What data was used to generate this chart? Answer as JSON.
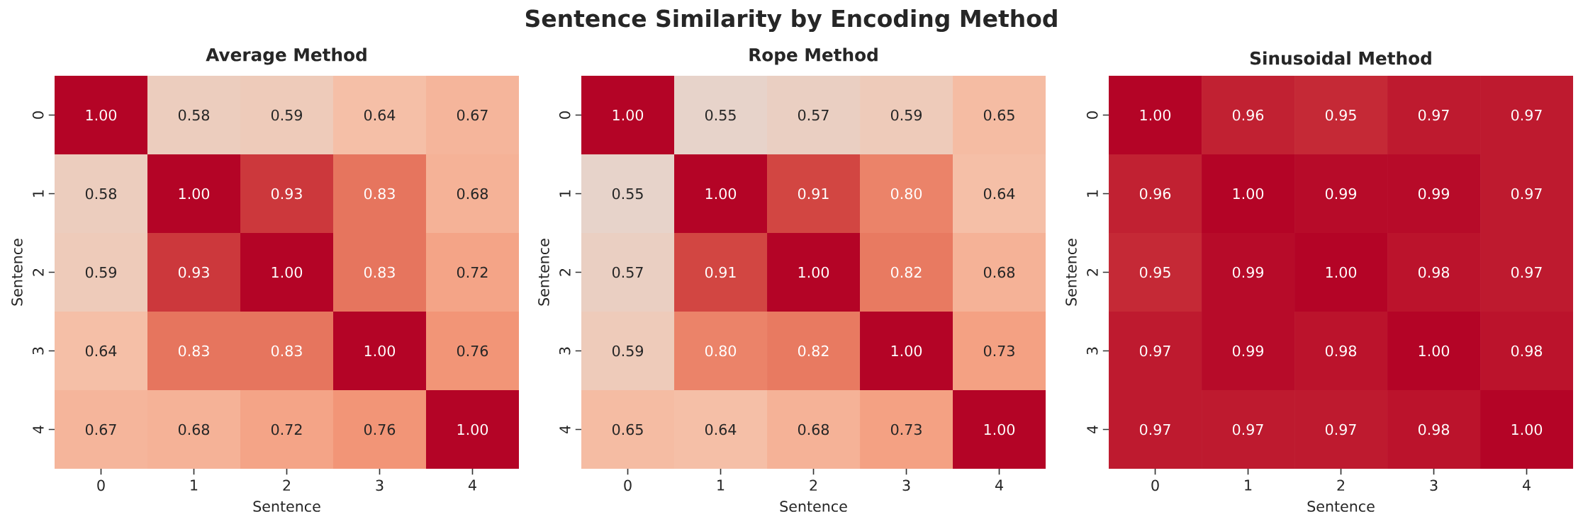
{
  "chart_data": [
    {
      "type": "other",
      "title": "Sentence Similarity by Encoding Method"
    },
    {
      "type": "heatmap",
      "title": "Average Method",
      "xlabel": "Sentence",
      "ylabel": "Sentence",
      "categories": [
        "0",
        "1",
        "2",
        "3",
        "4"
      ],
      "y_categories": [
        "0",
        "1",
        "2",
        "3",
        "4"
      ],
      "cells": [
        [
          1.0,
          0.58,
          0.59,
          0.64,
          0.67
        ],
        [
          0.58,
          1.0,
          0.93,
          0.83,
          0.68
        ],
        [
          0.59,
          0.93,
          1.0,
          0.83,
          0.72
        ],
        [
          0.64,
          0.83,
          0.83,
          1.0,
          0.76
        ],
        [
          0.67,
          0.68,
          0.72,
          0.76,
          1.0
        ]
      ],
      "cell_labels": [
        [
          "1.00",
          "0.58",
          "0.59",
          "0.64",
          "0.67"
        ],
        [
          "0.58",
          "1.00",
          "0.93",
          "0.83",
          "0.68"
        ],
        [
          "0.59",
          "0.93",
          "1.00",
          "0.83",
          "0.72"
        ],
        [
          "0.64",
          "0.83",
          "0.83",
          "1.00",
          "0.76"
        ],
        [
          "0.67",
          "0.68",
          "0.72",
          "0.76",
          "1.00"
        ]
      ]
    },
    {
      "type": "heatmap",
      "title": "Rope Method",
      "xlabel": "Sentence",
      "ylabel": "Sentence",
      "categories": [
        "0",
        "1",
        "2",
        "3",
        "4"
      ],
      "y_categories": [
        "0",
        "1",
        "2",
        "3",
        "4"
      ],
      "cells": [
        [
          1.0,
          0.55,
          0.57,
          0.59,
          0.65
        ],
        [
          0.55,
          1.0,
          0.91,
          0.8,
          0.64
        ],
        [
          0.57,
          0.91,
          1.0,
          0.82,
          0.68
        ],
        [
          0.59,
          0.8,
          0.82,
          1.0,
          0.73
        ],
        [
          0.65,
          0.64,
          0.68,
          0.73,
          1.0
        ]
      ],
      "cell_labels": [
        [
          "1.00",
          "0.55",
          "0.57",
          "0.59",
          "0.65"
        ],
        [
          "0.55",
          "1.00",
          "0.91",
          "0.80",
          "0.64"
        ],
        [
          "0.57",
          "0.91",
          "1.00",
          "0.82",
          "0.68"
        ],
        [
          "0.59",
          "0.80",
          "0.82",
          "1.00",
          "0.73"
        ],
        [
          "0.65",
          "0.64",
          "0.68",
          "0.73",
          "1.00"
        ]
      ]
    },
    {
      "type": "heatmap",
      "title": "Sinusoidal Method",
      "xlabel": "Sentence",
      "ylabel": "Sentence",
      "categories": [
        "0",
        "1",
        "2",
        "3",
        "4"
      ],
      "y_categories": [
        "0",
        "1",
        "2",
        "3",
        "4"
      ],
      "cells": [
        [
          1.0,
          0.96,
          0.95,
          0.97,
          0.97
        ],
        [
          0.96,
          1.0,
          0.99,
          0.99,
          0.97
        ],
        [
          0.95,
          0.99,
          1.0,
          0.98,
          0.97
        ],
        [
          0.97,
          0.99,
          0.98,
          1.0,
          0.98
        ],
        [
          0.97,
          0.97,
          0.97,
          0.98,
          1.0
        ]
      ],
      "cell_labels": [
        [
          "1.00",
          "0.96",
          "0.95",
          "0.97",
          "0.97"
        ],
        [
          "0.96",
          "1.00",
          "0.99",
          "0.99",
          "0.97"
        ],
        [
          "0.95",
          "0.99",
          "1.00",
          "0.98",
          "0.97"
        ],
        [
          "0.97",
          "0.99",
          "0.98",
          "1.00",
          "0.98"
        ],
        [
          "0.97",
          "0.97",
          "0.97",
          "0.98",
          "1.00"
        ]
      ]
    }
  ]
}
